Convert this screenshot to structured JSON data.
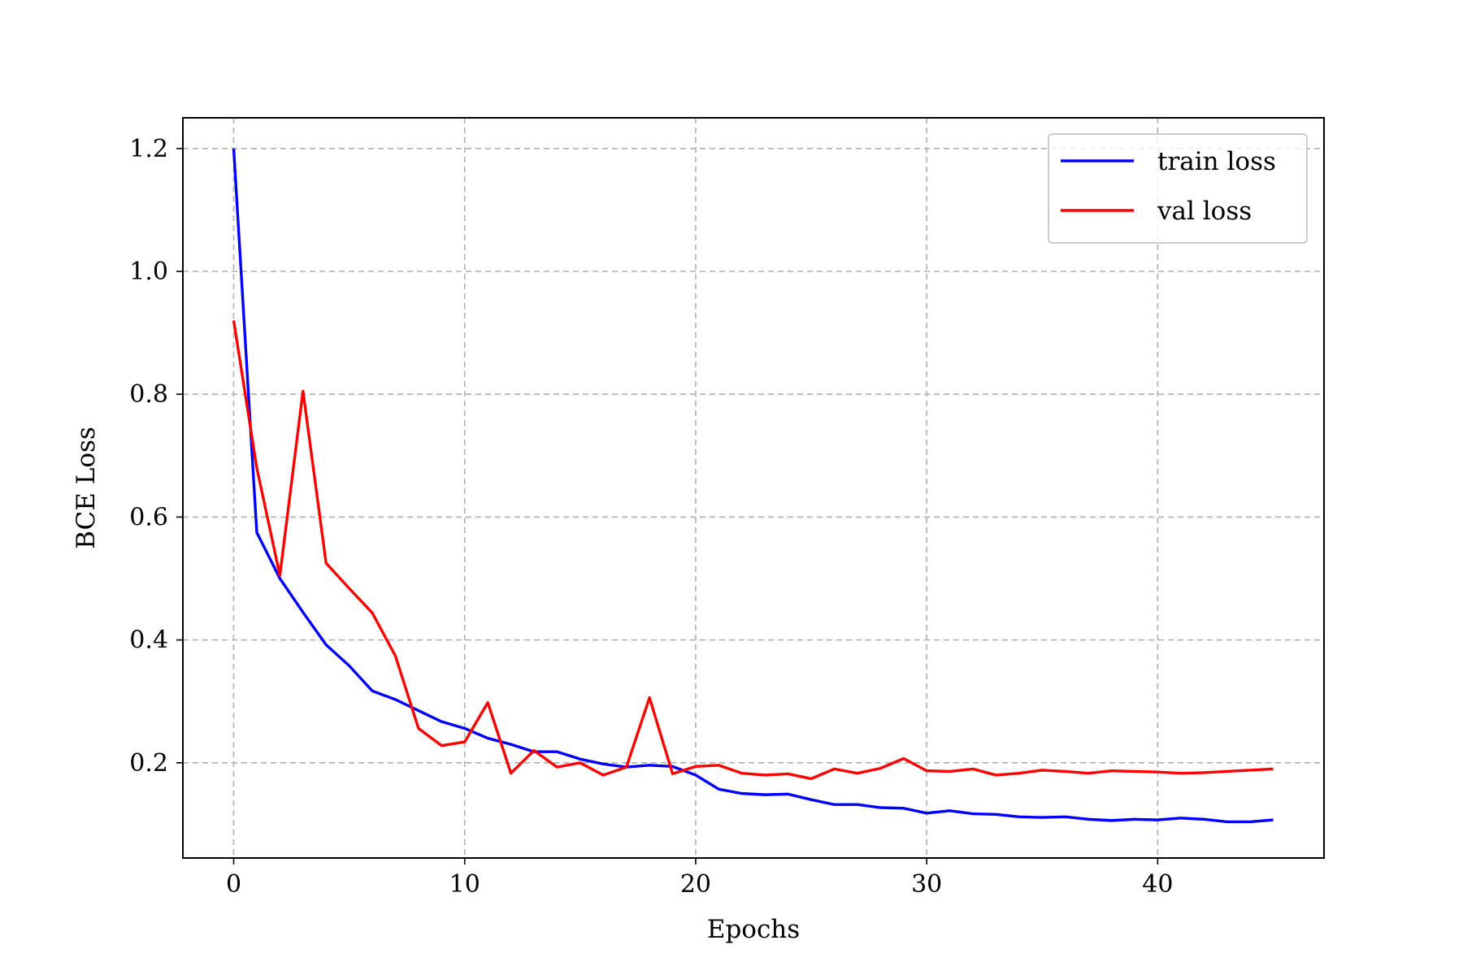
{
  "chart_data": {
    "type": "line",
    "title": "",
    "xlabel": "Epochs",
    "ylabel": "BCE Loss",
    "xlim": [
      -2.2,
      47.2
    ],
    "ylim": [
      0.045,
      1.25
    ],
    "xticks": [
      0,
      10,
      20,
      30,
      40
    ],
    "xtick_labels": [
      "0",
      "10",
      "20",
      "30",
      "40"
    ],
    "yticks": [
      0.2,
      0.4,
      0.6,
      0.8,
      1.0,
      1.2
    ],
    "ytick_labels": [
      "0.2",
      "0.4",
      "0.6",
      "0.8",
      "1.0",
      "1.2"
    ],
    "grid": true,
    "legend_position": "top-right",
    "x": [
      0,
      1,
      2,
      3,
      4,
      5,
      6,
      7,
      8,
      9,
      10,
      11,
      12,
      13,
      14,
      15,
      16,
      17,
      18,
      19,
      20,
      21,
      22,
      23,
      24,
      25,
      26,
      27,
      28,
      29,
      30,
      31,
      32,
      33,
      34,
      35,
      36,
      37,
      38,
      39,
      40,
      41,
      42,
      43,
      44,
      45
    ],
    "series": [
      {
        "name": "train loss",
        "color": "#0000ff",
        "values": [
          1.2,
          0.575,
          0.5,
          0.445,
          0.392,
          0.358,
          0.317,
          0.303,
          0.285,
          0.267,
          0.256,
          0.24,
          0.23,
          0.218,
          0.218,
          0.206,
          0.198,
          0.193,
          0.196,
          0.194,
          0.18,
          0.157,
          0.15,
          0.148,
          0.149,
          0.14,
          0.132,
          0.132,
          0.127,
          0.126,
          0.118,
          0.122,
          0.117,
          0.116,
          0.112,
          0.111,
          0.112,
          0.108,
          0.106,
          0.108,
          0.107,
          0.11,
          0.108,
          0.104,
          0.104,
          0.107
        ]
      },
      {
        "name": "val loss",
        "color": "#ff0000",
        "values": [
          0.92,
          0.68,
          0.505,
          0.805,
          0.525,
          0.484,
          0.444,
          0.374,
          0.256,
          0.228,
          0.234,
          0.298,
          0.183,
          0.22,
          0.193,
          0.2,
          0.18,
          0.193,
          0.306,
          0.182,
          0.194,
          0.196,
          0.183,
          0.18,
          0.182,
          0.174,
          0.19,
          0.183,
          0.191,
          0.207,
          0.187,
          0.186,
          0.19,
          0.18,
          0.183,
          0.188,
          0.186,
          0.183,
          0.187,
          0.186,
          0.185,
          0.183,
          0.184,
          0.186,
          0.188,
          0.19
        ]
      }
    ]
  }
}
